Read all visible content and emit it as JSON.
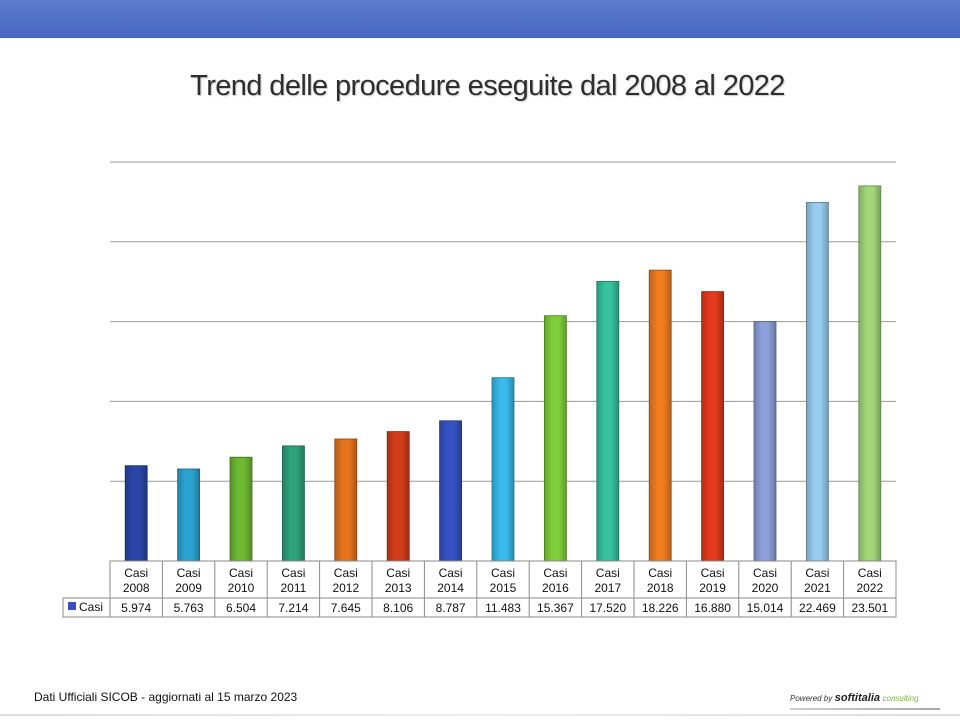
{
  "slide": {
    "title": "Trend delle procedure eseguite dal 2008 al 2022",
    "footer": "Dati Ufficiali SICOB - aggiornati al 15 marzo 2023",
    "brand": {
      "powered": "Powered by",
      "name": "softitalia",
      "sub": "consulting"
    }
  },
  "colors": {
    "header_band": "#4e6cc6",
    "grid": "#9a9a9a"
  },
  "chart_data": {
    "type": "bar",
    "title": "Trend delle procedure eseguite dal 2008 al 2022",
    "xlabel": "",
    "ylabel": "",
    "ylim": [
      0,
      25000
    ],
    "grid": true,
    "legend": "table-left",
    "categories": [
      "Casi 2008",
      "Casi 2009",
      "Casi 2010",
      "Casi 2011",
      "Casi 2012",
      "Casi 2013",
      "Casi 2014",
      "Casi 2015",
      "Casi 2016",
      "Casi 2017",
      "Casi 2018",
      "Casi 2019",
      "Casi 2020",
      "Casi 2021",
      "Casi 2022"
    ],
    "category_lines": [
      [
        "Casi",
        "2008"
      ],
      [
        "Casi",
        "2009"
      ],
      [
        "Casi",
        "2010"
      ],
      [
        "Casi",
        "2011"
      ],
      [
        "Casi",
        "2012"
      ],
      [
        "Casi",
        "2013"
      ],
      [
        "Casi",
        "2014"
      ],
      [
        "Casi",
        "2015"
      ],
      [
        "Casi",
        "2016"
      ],
      [
        "Casi",
        "2017"
      ],
      [
        "Casi",
        "2018"
      ],
      [
        "Casi",
        "2019"
      ],
      [
        "Casi",
        "2020"
      ],
      [
        "Casi",
        "2021"
      ],
      [
        "Casi",
        "2022"
      ]
    ],
    "series": [
      {
        "name": "Casi",
        "values": [
          5974,
          5763,
          6504,
          7214,
          7645,
          8106,
          8787,
          11483,
          15367,
          17520,
          18226,
          16880,
          15014,
          22469,
          23501
        ],
        "labels": [
          "5.974",
          "5.763",
          "6.504",
          "7.214",
          "7.645",
          "8.106",
          "8.787",
          "11.483",
          "15.367",
          "17.520",
          "18.226",
          "16.880",
          "15.014",
          "22.469",
          "23.501"
        ],
        "legend_color": "#3b4fc0"
      }
    ],
    "bar_colors": [
      "#2a47a8",
      "#2aa3d1",
      "#6fb833",
      "#2ea27a",
      "#e4731e",
      "#d33c1a",
      "#3552c2",
      "#37b9ea",
      "#7fcf3a",
      "#35c29c",
      "#f07d20",
      "#e3391c",
      "#8c9fd9",
      "#97cdef",
      "#a3d77a"
    ]
  }
}
